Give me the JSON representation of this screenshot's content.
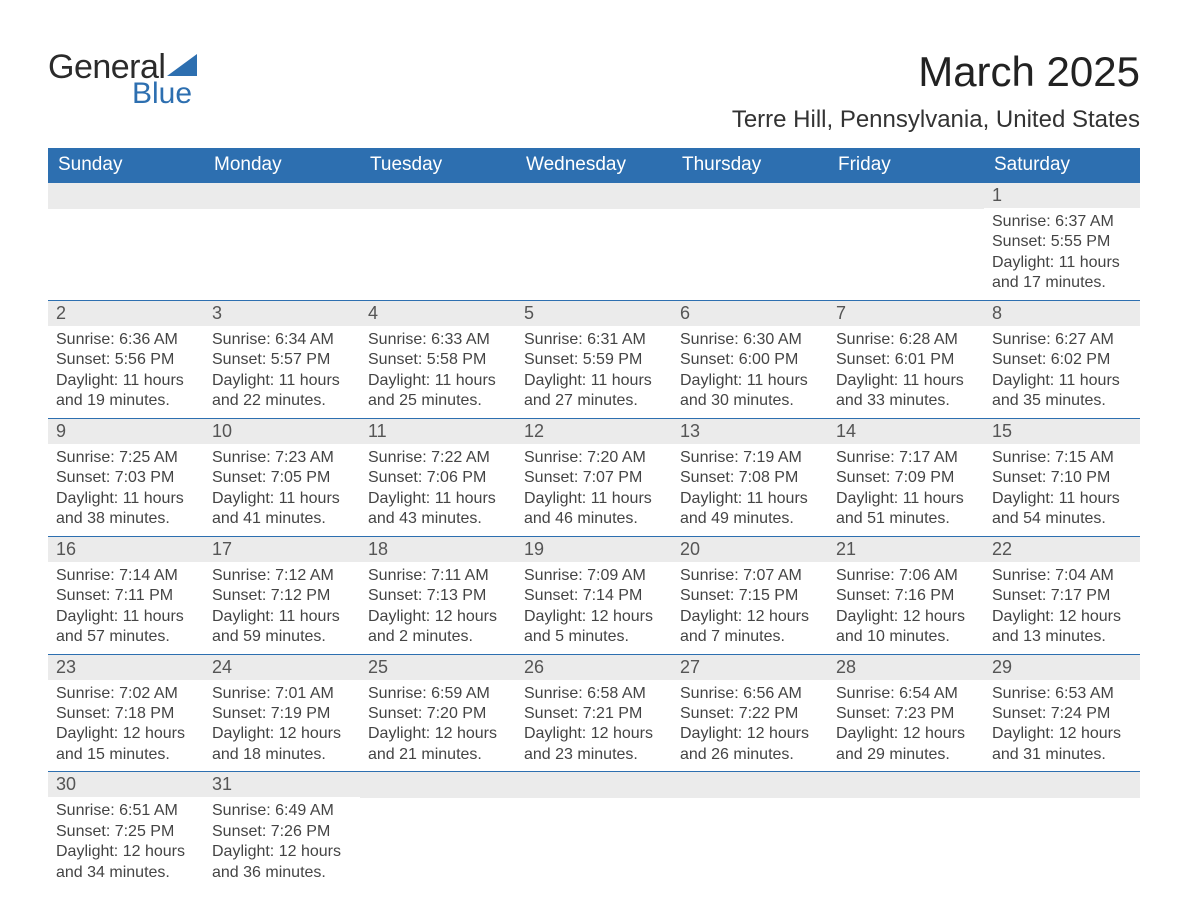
{
  "logo": {
    "word1": "General",
    "word2": "Blue",
    "brand_color": "#2d6fb0"
  },
  "title": "March 2025",
  "location": "Terre Hill, Pennsylvania, United States",
  "day_headers": [
    "Sunday",
    "Monday",
    "Tuesday",
    "Wednesday",
    "Thursday",
    "Friday",
    "Saturday"
  ],
  "colors": {
    "header_bg": "#2d6fb0",
    "header_text": "#ffffff",
    "daynum_bg": "#ebebeb",
    "daynum_text": "#555555",
    "body_text": "#444444",
    "background": "#ffffff",
    "row_border": "#2d6fb0"
  },
  "typography": {
    "title_fontsize": 42,
    "location_fontsize": 24,
    "header_fontsize": 19,
    "daynum_fontsize": 18,
    "cell_fontsize": 16
  },
  "weeks": [
    [
      {
        "num": "",
        "lines": []
      },
      {
        "num": "",
        "lines": []
      },
      {
        "num": "",
        "lines": []
      },
      {
        "num": "",
        "lines": []
      },
      {
        "num": "",
        "lines": []
      },
      {
        "num": "",
        "lines": []
      },
      {
        "num": "1",
        "lines": [
          "Sunrise: 6:37 AM",
          "Sunset: 5:55 PM",
          "Daylight: 11 hours and 17 minutes."
        ]
      }
    ],
    [
      {
        "num": "2",
        "lines": [
          "Sunrise: 6:36 AM",
          "Sunset: 5:56 PM",
          "Daylight: 11 hours and 19 minutes."
        ]
      },
      {
        "num": "3",
        "lines": [
          "Sunrise: 6:34 AM",
          "Sunset: 5:57 PM",
          "Daylight: 11 hours and 22 minutes."
        ]
      },
      {
        "num": "4",
        "lines": [
          "Sunrise: 6:33 AM",
          "Sunset: 5:58 PM",
          "Daylight: 11 hours and 25 minutes."
        ]
      },
      {
        "num": "5",
        "lines": [
          "Sunrise: 6:31 AM",
          "Sunset: 5:59 PM",
          "Daylight: 11 hours and 27 minutes."
        ]
      },
      {
        "num": "6",
        "lines": [
          "Sunrise: 6:30 AM",
          "Sunset: 6:00 PM",
          "Daylight: 11 hours and 30 minutes."
        ]
      },
      {
        "num": "7",
        "lines": [
          "Sunrise: 6:28 AM",
          "Sunset: 6:01 PM",
          "Daylight: 11 hours and 33 minutes."
        ]
      },
      {
        "num": "8",
        "lines": [
          "Sunrise: 6:27 AM",
          "Sunset: 6:02 PM",
          "Daylight: 11 hours and 35 minutes."
        ]
      }
    ],
    [
      {
        "num": "9",
        "lines": [
          "Sunrise: 7:25 AM",
          "Sunset: 7:03 PM",
          "Daylight: 11 hours and 38 minutes."
        ]
      },
      {
        "num": "10",
        "lines": [
          "Sunrise: 7:23 AM",
          "Sunset: 7:05 PM",
          "Daylight: 11 hours and 41 minutes."
        ]
      },
      {
        "num": "11",
        "lines": [
          "Sunrise: 7:22 AM",
          "Sunset: 7:06 PM",
          "Daylight: 11 hours and 43 minutes."
        ]
      },
      {
        "num": "12",
        "lines": [
          "Sunrise: 7:20 AM",
          "Sunset: 7:07 PM",
          "Daylight: 11 hours and 46 minutes."
        ]
      },
      {
        "num": "13",
        "lines": [
          "Sunrise: 7:19 AM",
          "Sunset: 7:08 PM",
          "Daylight: 11 hours and 49 minutes."
        ]
      },
      {
        "num": "14",
        "lines": [
          "Sunrise: 7:17 AM",
          "Sunset: 7:09 PM",
          "Daylight: 11 hours and 51 minutes."
        ]
      },
      {
        "num": "15",
        "lines": [
          "Sunrise: 7:15 AM",
          "Sunset: 7:10 PM",
          "Daylight: 11 hours and 54 minutes."
        ]
      }
    ],
    [
      {
        "num": "16",
        "lines": [
          "Sunrise: 7:14 AM",
          "Sunset: 7:11 PM",
          "Daylight: 11 hours and 57 minutes."
        ]
      },
      {
        "num": "17",
        "lines": [
          "Sunrise: 7:12 AM",
          "Sunset: 7:12 PM",
          "Daylight: 11 hours and 59 minutes."
        ]
      },
      {
        "num": "18",
        "lines": [
          "Sunrise: 7:11 AM",
          "Sunset: 7:13 PM",
          "Daylight: 12 hours and 2 minutes."
        ]
      },
      {
        "num": "19",
        "lines": [
          "Sunrise: 7:09 AM",
          "Sunset: 7:14 PM",
          "Daylight: 12 hours and 5 minutes."
        ]
      },
      {
        "num": "20",
        "lines": [
          "Sunrise: 7:07 AM",
          "Sunset: 7:15 PM",
          "Daylight: 12 hours and 7 minutes."
        ]
      },
      {
        "num": "21",
        "lines": [
          "Sunrise: 7:06 AM",
          "Sunset: 7:16 PM",
          "Daylight: 12 hours and 10 minutes."
        ]
      },
      {
        "num": "22",
        "lines": [
          "Sunrise: 7:04 AM",
          "Sunset: 7:17 PM",
          "Daylight: 12 hours and 13 minutes."
        ]
      }
    ],
    [
      {
        "num": "23",
        "lines": [
          "Sunrise: 7:02 AM",
          "Sunset: 7:18 PM",
          "Daylight: 12 hours and 15 minutes."
        ]
      },
      {
        "num": "24",
        "lines": [
          "Sunrise: 7:01 AM",
          "Sunset: 7:19 PM",
          "Daylight: 12 hours and 18 minutes."
        ]
      },
      {
        "num": "25",
        "lines": [
          "Sunrise: 6:59 AM",
          "Sunset: 7:20 PM",
          "Daylight: 12 hours and 21 minutes."
        ]
      },
      {
        "num": "26",
        "lines": [
          "Sunrise: 6:58 AM",
          "Sunset: 7:21 PM",
          "Daylight: 12 hours and 23 minutes."
        ]
      },
      {
        "num": "27",
        "lines": [
          "Sunrise: 6:56 AM",
          "Sunset: 7:22 PM",
          "Daylight: 12 hours and 26 minutes."
        ]
      },
      {
        "num": "28",
        "lines": [
          "Sunrise: 6:54 AM",
          "Sunset: 7:23 PM",
          "Daylight: 12 hours and 29 minutes."
        ]
      },
      {
        "num": "29",
        "lines": [
          "Sunrise: 6:53 AM",
          "Sunset: 7:24 PM",
          "Daylight: 12 hours and 31 minutes."
        ]
      }
    ],
    [
      {
        "num": "30",
        "lines": [
          "Sunrise: 6:51 AM",
          "Sunset: 7:25 PM",
          "Daylight: 12 hours and 34 minutes."
        ]
      },
      {
        "num": "31",
        "lines": [
          "Sunrise: 6:49 AM",
          "Sunset: 7:26 PM",
          "Daylight: 12 hours and 36 minutes."
        ]
      },
      {
        "num": "",
        "lines": []
      },
      {
        "num": "",
        "lines": []
      },
      {
        "num": "",
        "lines": []
      },
      {
        "num": "",
        "lines": []
      },
      {
        "num": "",
        "lines": []
      }
    ]
  ]
}
